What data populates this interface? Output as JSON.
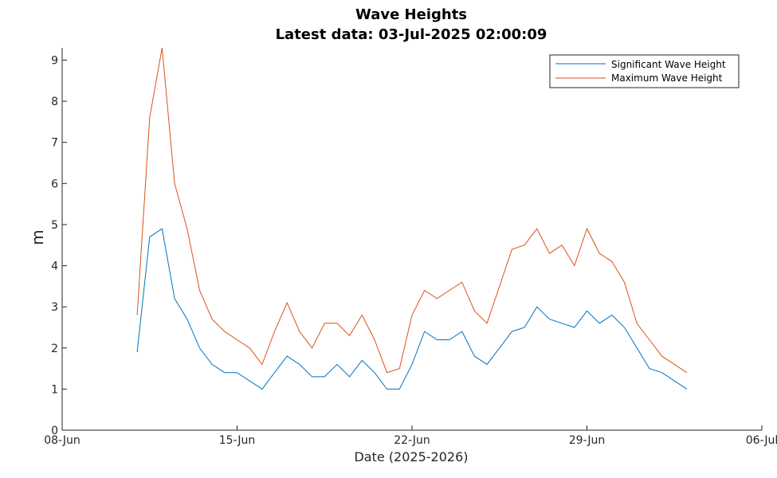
{
  "chart_data": {
    "type": "line",
    "title": "Wave Heights",
    "subtitle": "Latest data: 03-Jul-2025 02:00:09",
    "xlabel": "Date (2025-2026)",
    "ylabel": "m",
    "xlim": [
      "2025-06-08",
      "2025-07-06"
    ],
    "ylim": [
      0,
      9.3
    ],
    "x_ticks": [
      {
        "date": "2025-06-08",
        "label": "08-Jun"
      },
      {
        "date": "2025-06-15",
        "label": "15-Jun"
      },
      {
        "date": "2025-06-22",
        "label": "22-Jun"
      },
      {
        "date": "2025-06-29",
        "label": "29-Jun"
      },
      {
        "date": "2025-07-06",
        "label": "06-Jul"
      }
    ],
    "y_ticks": [
      "0",
      "1",
      "2",
      "3",
      "4",
      "5",
      "6",
      "7",
      "8",
      "9"
    ],
    "grid": false,
    "legend_position": "top-right",
    "x": [
      "2025-06-11",
      "2025-06-11T12:00",
      "2025-06-12",
      "2025-06-12T12:00",
      "2025-06-13",
      "2025-06-13T12:00",
      "2025-06-14",
      "2025-06-14T12:00",
      "2025-06-15",
      "2025-06-15T12:00",
      "2025-06-16",
      "2025-06-16T12:00",
      "2025-06-17",
      "2025-06-17T12:00",
      "2025-06-18",
      "2025-06-18T12:00",
      "2025-06-19",
      "2025-06-19T12:00",
      "2025-06-20",
      "2025-06-20T12:00",
      "2025-06-21",
      "2025-06-21T12:00",
      "2025-06-22",
      "2025-06-22T12:00",
      "2025-06-23",
      "2025-06-23T12:00",
      "2025-06-24",
      "2025-06-24T12:00",
      "2025-06-25",
      "2025-06-25T12:00",
      "2025-06-26",
      "2025-06-26T12:00",
      "2025-06-27",
      "2025-06-27T12:00",
      "2025-06-28",
      "2025-06-28T12:00",
      "2025-06-29",
      "2025-06-29T12:00",
      "2025-06-30",
      "2025-06-30T12:00",
      "2025-07-01",
      "2025-07-01T12:00",
      "2025-07-02",
      "2025-07-02T12:00",
      "2025-07-03"
    ],
    "series": [
      {
        "name": "Significant Wave Height",
        "color": "#0072BD",
        "values": [
          1.9,
          4.7,
          4.9,
          3.2,
          2.7,
          2.0,
          1.6,
          1.4,
          1.4,
          1.2,
          1.0,
          1.4,
          1.8,
          1.6,
          1.3,
          1.3,
          1.6,
          1.3,
          1.7,
          1.4,
          1.0,
          1.0,
          1.6,
          2.4,
          2.2,
          2.2,
          2.4,
          1.8,
          1.6,
          2.0,
          2.4,
          2.5,
          3.0,
          2.7,
          2.6,
          2.5,
          2.9,
          2.6,
          2.8,
          2.5,
          2.0,
          1.5,
          1.4,
          1.2,
          1.0
        ]
      },
      {
        "name": "Maximum Wave Height",
        "color": "#D95319",
        "values": [
          2.8,
          7.6,
          9.3,
          6.0,
          4.9,
          3.4,
          2.7,
          2.4,
          2.2,
          2.0,
          1.6,
          2.4,
          3.1,
          2.4,
          2.0,
          2.6,
          2.6,
          2.3,
          2.8,
          2.2,
          1.4,
          1.5,
          2.8,
          3.4,
          3.2,
          3.4,
          3.6,
          2.9,
          2.6,
          3.5,
          4.4,
          4.5,
          4.9,
          4.3,
          4.5,
          4.0,
          4.9,
          4.3,
          4.1,
          3.6,
          2.6,
          2.2,
          1.8,
          1.6,
          1.4
        ]
      }
    ]
  }
}
